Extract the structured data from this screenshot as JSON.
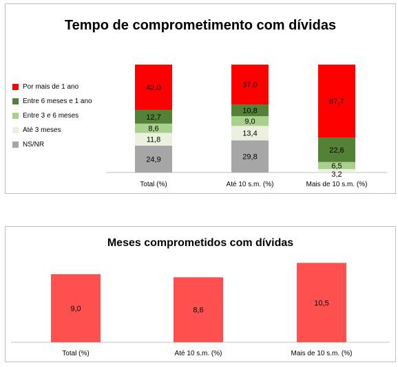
{
  "chart_data": [
    {
      "type": "bar",
      "stacked": true,
      "orientation": "vertical",
      "normalized": "100%",
      "title": "Tempo de comprometimento com dívidas",
      "categories": [
        "Total (%)",
        "Até 10 s.m. (%)",
        "Mais de 10 s.m. (%)"
      ],
      "series": [
        {
          "name": "NS/NR",
          "values": [
            24.9,
            29.8,
            0.0
          ],
          "labels": [
            "24,9",
            "29,8",
            ""
          ],
          "color": "#a6a6a6"
        },
        {
          "name": "Até 3 meses",
          "values": [
            11.8,
            13.4,
            3.2
          ],
          "labels": [
            "11,8",
            "13,4",
            "3,2"
          ],
          "color": "#ebf1de"
        },
        {
          "name": "Entre 3 e 6 meses",
          "values": [
            8.6,
            9.0,
            6.5
          ],
          "labels": [
            "8,6",
            "9,0",
            "6,5"
          ],
          "color": "#a9d18e"
        },
        {
          "name": "Entre 6 meses e 1 ano",
          "values": [
            12.7,
            10.8,
            22.6
          ],
          "labels": [
            "12,7",
            "10,8",
            "22,6"
          ],
          "color": "#538135"
        },
        {
          "name": "Por mais de 1 ano",
          "values": [
            42.0,
            37.0,
            67.7
          ],
          "labels": [
            "42,0",
            "37,0",
            "67,7"
          ],
          "color": "#ff0000"
        }
      ],
      "legend": {
        "position": "left",
        "order": [
          "Por mais de 1 ano",
          "Entre 6 meses e 1 ano",
          "Entre 3 e 6 meses",
          "Até 3 meses",
          "NS/NR"
        ]
      },
      "grid": false
    },
    {
      "type": "bar",
      "title": "Meses comprometidos com dívidas",
      "categories": [
        "Total (%)",
        "Até 10 s.m. (%)",
        "Mais de 10 s.m. (%)"
      ],
      "values": [
        9.0,
        8.6,
        10.5
      ],
      "labels": [
        "9,0",
        "8,6",
        "10,5"
      ],
      "color": "#ff5050",
      "ylim": [
        0,
        12
      ],
      "grid": false
    }
  ]
}
